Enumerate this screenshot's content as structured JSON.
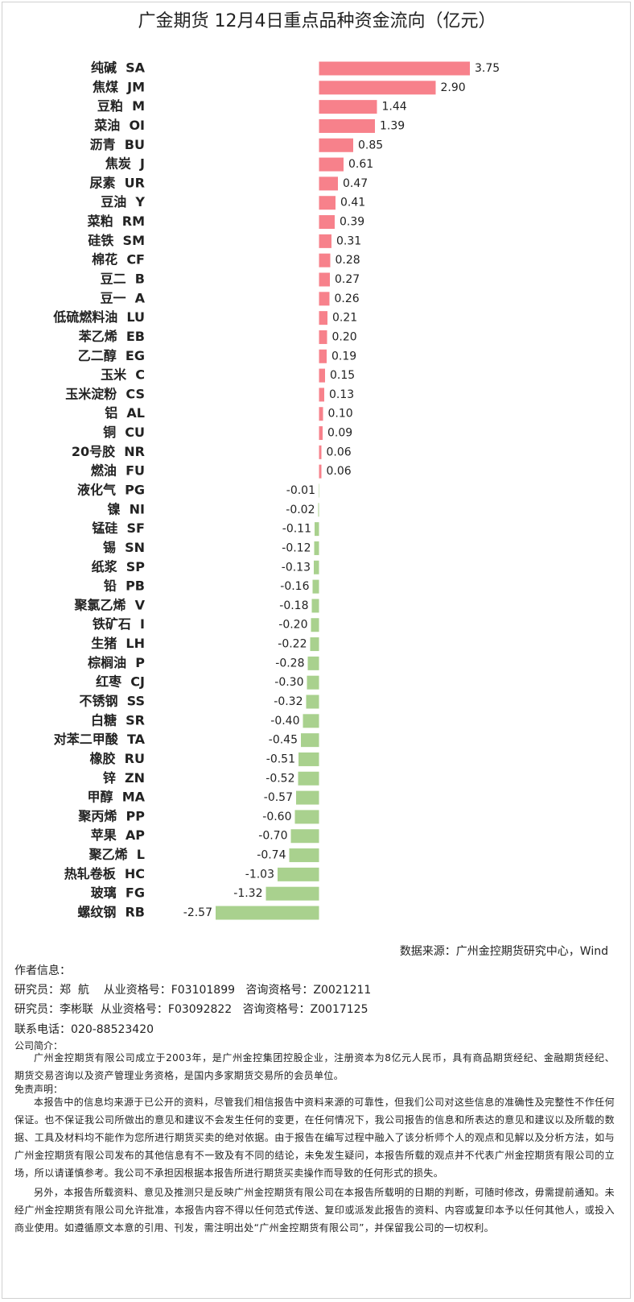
{
  "chart_data": {
    "type": "hbar",
    "title": "广金期货 12月4日重点品种资金流向（亿元）",
    "categories": [
      "纯碱  SA",
      "焦煤  JM",
      "豆粕  M",
      "菜油  OI",
      "沥青  BU",
      "焦炭  J",
      "尿素  UR",
      "豆油  Y",
      "菜粕  RM",
      "硅铁  SM",
      "棉花  CF",
      "豆二  B",
      "豆一  A",
      "低硫燃料油  LU",
      "苯乙烯  EB",
      "乙二醇  EG",
      "玉米  C",
      "玉米淀粉  CS",
      "铝  AL",
      "铜  CU",
      "20号胶  NR",
      "燃油  FU",
      "液化气  PG",
      "镍  NI",
      "锰硅  SF",
      "锡  SN",
      "纸浆  SP",
      "铅  PB",
      "聚氯乙烯  V",
      "铁矿石  I",
      "生猪  LH",
      "棕榈油  P",
      "红枣  CJ",
      "不锈钢  SS",
      "白糖  SR",
      "对苯二甲酸  TA",
      "橡胶  RU",
      "锌  ZN",
      "甲醇  MA",
      "聚丙烯  PP",
      "苹果  AP",
      "聚乙烯  L",
      "热轧卷板  HC",
      "玻璃  FG",
      "螺纹钢  RB"
    ],
    "values": [
      3.75,
      2.9,
      1.44,
      1.39,
      0.85,
      0.61,
      0.47,
      0.41,
      0.39,
      0.31,
      0.28,
      0.27,
      0.26,
      0.21,
      0.2,
      0.19,
      0.15,
      0.13,
      0.1,
      0.09,
      0.06,
      0.06,
      -0.01,
      -0.02,
      -0.11,
      -0.12,
      -0.13,
      -0.16,
      -0.18,
      -0.2,
      -0.22,
      -0.28,
      -0.3,
      -0.32,
      -0.4,
      -0.45,
      -0.51,
      -0.52,
      -0.57,
      -0.6,
      -0.7,
      -0.74,
      -1.03,
      -1.32,
      -2.57
    ],
    "value_labels": [
      "3.75",
      "2.90",
      "1.44",
      "1.39",
      "0.85",
      "0.61",
      "0.47",
      "0.41",
      "0.39",
      "0.31",
      "0.28",
      "0.27",
      "0.26",
      "0.21",
      "0.20",
      "0.19",
      "0.15",
      "0.13",
      "0.10",
      "0.09",
      "0.06",
      "0.06",
      "-0.01",
      "-0.02",
      "-0.11",
      "-0.12",
      "-0.13",
      "-0.16",
      "-0.18",
      "-0.20",
      "-0.22",
      "-0.28",
      "-0.30",
      "-0.32",
      "-0.40",
      "-0.45",
      "-0.51",
      "-0.52",
      "-0.57",
      "-0.60",
      "-0.70",
      "-0.74",
      "-1.03",
      "-1.32",
      "-2.57"
    ],
    "positive_color": "#f7818b",
    "negative_color": "#a9d18e"
  },
  "footer": {
    "source": "数据来源：广州金控期货研究中心，Wind",
    "author_heading": "作者信息：",
    "researchers": [
      "研究员：郑  航    从业资格号：F03101899   咨询资格号：Z0021211",
      "研究员：李彬联  从业资格号：F03092822   咨询资格号：Z0017125"
    ],
    "phone": "联系电话：020-88523420",
    "intro_heading": "公司简介：",
    "intro": "广州金控期货有限公司成立于2003年，是广州金控集团控股企业，注册资本为8亿元人民币，具有商品期货经纪、金融期货经纪、期货交易咨询以及资产管理业务资格，是国内多家期货交易所的会员单位。",
    "disclaimer_heading": "免责声明：",
    "disclaimer": [
      "本报告中的信息均来源于已公开的资料，尽管我们相信报告中资料来源的可靠性，但我们公司对这些信息的准确性及完整性不作任何保证。也不保证我公司所做出的意见和建议不会发生任何的变更，在任何情况下，我公司报告的信息和所表达的意见和建议以及所载的数据、工具及材料均不能作为您所进行期货买卖的绝对依据。由于报告在编写过程中融入了该分析师个人的观点和见解以及分析方法，如与广州金控期货有限公司发布的其他信息有不一致及有不同的结论，未免发生疑问，本报告所载的观点并不代表广州金控期货有限公司的立场，所以请谨慎参考。我公司不承担因根据本报告所进行期货买卖操作而导致的任何形式的损失。",
      "另外，本报告所载资料、意见及推测只是反映广州金控期货有限公司在本报告所载明的日期的判断，可随时修改，毋需提前通知。未经广州金控期货有限公司允许批准，本报告内容不得以任何范式传送、复印或派发此报告的资料、内容或复印本予以任何其他人，或投入商业使用。如遵循原文本意的引用、刊发，需注明出处“广州金控期货有限公司”，并保留我公司的一切权利。"
    ]
  }
}
